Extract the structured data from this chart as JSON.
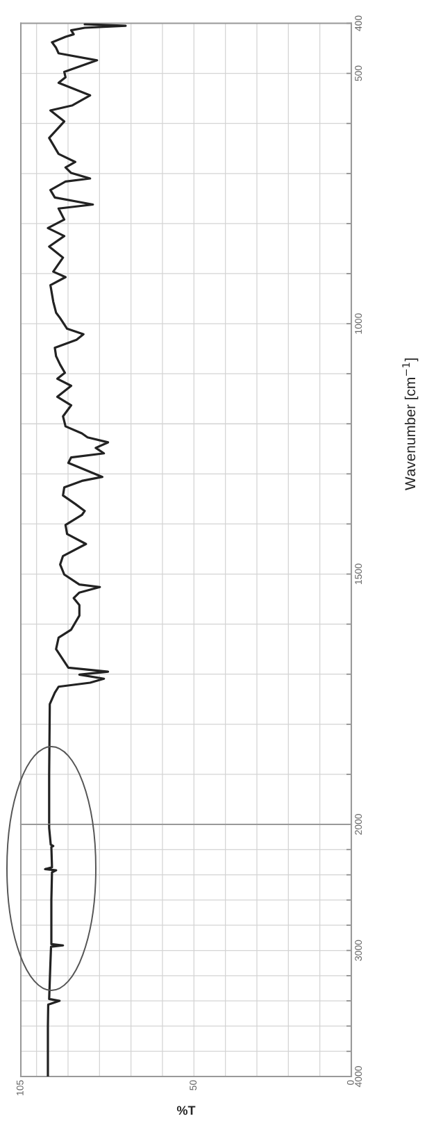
{
  "chart_data": [
    {
      "type": "line",
      "ylabel": "Wavenumber [cm$^{−1}$]",
      "tick_labels": "y",
      "xlim": [
        105,
        0
      ],
      "ylim": [
        2000,
        400
      ],
      "xticks": [
        105,
        100,
        90,
        80,
        70,
        60,
        50,
        40,
        30,
        20,
        10,
        0
      ],
      "yticks": [
        {
          "value": 1900,
          "label": null
        },
        {
          "value": 1800,
          "label": null
        },
        {
          "value": 1700,
          "label": null
        },
        {
          "value": 1600,
          "label": null
        },
        1500,
        {
          "value": 1400,
          "label": null
        },
        {
          "value": 1300,
          "label": null
        },
        {
          "value": 1200,
          "label": null
        },
        {
          "value": 1100,
          "label": null
        },
        1000,
        {
          "value": 900,
          "label": null
        },
        {
          "value": 800,
          "label": null
        },
        {
          "value": 700,
          "label": null
        },
        {
          "value": 600,
          "label": null
        },
        500,
        400
      ],
      "grid": true,
      "marker": "none",
      "line_style": "solid",
      "series": [
        {
          "color": "#222222",
          "values": [
            2000,
            1900,
            1760,
            1737,
            1725,
            1717,
            1709,
            1701,
            1695,
            1687,
            1650,
            1627,
            1611,
            1583,
            1562,
            1548,
            1537,
            1526,
            1521,
            1501,
            1481,
            1464,
            1440,
            1420,
            1402,
            1382,
            1374,
            1360,
            1343,
            1327,
            1314,
            1306,
            1278,
            1267,
            1259,
            1248,
            1237,
            1227,
            1219,
            1205,
            1185,
            1163,
            1146,
            1124,
            1110,
            1098,
            1082,
            1065,
            1048,
            1032,
            1021,
            1010,
            989,
            978,
            956,
            923,
            907,
            896,
            868,
            846,
            825,
            809,
            792,
            770,
            762,
            748,
            733,
            716,
            710,
            699,
            688,
            677,
            661,
            629,
            596,
            574,
            564,
            544,
            519,
            508,
            497,
            474,
            460,
            449,
            438,
            427,
            422,
            414,
            409,
            405,
            402
          ],
          "x": [
            96.0,
            96.0,
            95.8,
            94.2,
            93.0,
            83.0,
            78.6,
            86.4,
            77.3,
            89.9,
            93.8,
            93.0,
            89.0,
            86.4,
            86.4,
            88.2,
            86.4,
            79.9,
            86.4,
            91.2,
            92.5,
            91.6,
            84.3,
            90.3,
            90.8,
            85.6,
            84.7,
            87.7,
            91.6,
            91.2,
            85.6,
            79.1,
            89.9,
            89.0,
            78.6,
            81.2,
            77.3,
            83.8,
            85.6,
            90.8,
            91.6,
            89.0,
            93.4,
            89.0,
            93.4,
            91.0,
            92.5,
            93.8,
            94.2,
            87.3,
            85.1,
            90.3,
            92.5,
            93.8,
            94.7,
            95.6,
            90.8,
            94.7,
            91.6,
            96.0,
            91.2,
            96.4,
            91.2,
            93.0,
            82.1,
            94.2,
            95.6,
            90.8,
            83.0,
            89.0,
            90.8,
            87.7,
            93.0,
            96.0,
            91.2,
            95.6,
            88.6,
            83.0,
            93.0,
            90.8,
            91.2,
            80.8,
            93.0,
            93.8,
            95.1,
            90.8,
            88.2,
            89.0,
            84.7,
            71.7,
            84.7
          ]
        }
      ]
    },
    {
      "type": "line",
      "xlabel": "%T",
      "xlim": [
        105,
        0
      ],
      "ylim": [
        4000,
        2000
      ],
      "xticks": [
        105,
        {
          "value": 100,
          "label": null
        },
        {
          "value": 90,
          "label": null
        },
        {
          "value": 80,
          "label": null
        },
        {
          "value": 70,
          "label": null
        },
        {
          "value": 60,
          "label": null
        },
        50,
        {
          "value": 40,
          "label": null
        },
        {
          "value": 30,
          "label": null
        },
        {
          "value": 20,
          "label": null
        },
        {
          "value": 10,
          "label": null
        },
        0
      ],
      "yticks": [
        4000,
        {
          "value": 3800,
          "label": null
        },
        {
          "value": 3600,
          "label": null
        },
        {
          "value": 3400,
          "label": null
        },
        {
          "value": 3200,
          "label": null
        },
        3000,
        {
          "value": 2800,
          "label": null
        },
        {
          "value": 2600,
          "label": null
        },
        {
          "value": 2400,
          "label": null
        },
        {
          "value": 2200,
          "label": null
        },
        2000
      ],
      "grid": true,
      "marker": "none",
      "line_style": "solid",
      "series": [
        {
          "color": "#222222",
          "values": [
            4000,
            3600,
            3430,
            3400,
            3385,
            3100,
            2970,
            2960,
            2950,
            2600,
            2380,
            2364,
            2355,
            2340,
            2180,
            2171,
            2160,
            2028,
            2000
          ],
          "x": [
            96.4,
            96.4,
            96.3,
            92.7,
            96.0,
            95.6,
            95.4,
            91.6,
            95.3,
            95.3,
            95.1,
            93.8,
            97.3,
            95.1,
            95.3,
            94.7,
            95.5,
            96.0,
            96.0
          ]
        }
      ]
    }
  ]
}
